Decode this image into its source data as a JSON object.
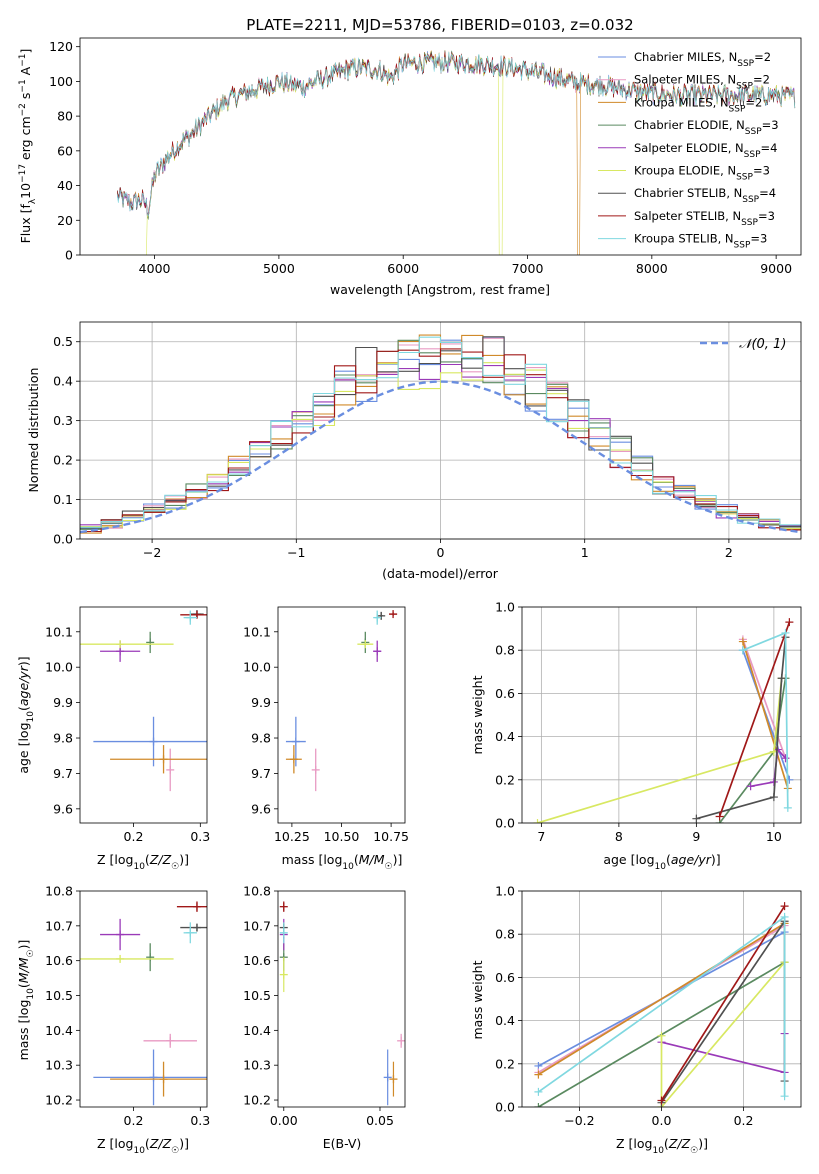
{
  "page_title": "PLATE=2211, MJD=53786, FIBERID=0103, z=0.032",
  "colors": [
    "#6a8ee0",
    "#e89ac3",
    "#d08a2a",
    "#5a8a60",
    "#9a3ab8",
    "#d8e862",
    "#505050",
    "#a01818",
    "#80d8e0"
  ],
  "chart_data": [
    {
      "type": "line",
      "id": "spectrum",
      "title": "PLATE=2211, MJD=53786, FIBERID=0103, z=0.032",
      "xlabel": "wavelength [Angstrom, rest frame]",
      "ylabel": "Flux [f_λ 10^-17 erg cm^-2 s^-1 A^-1]",
      "xlim": [
        3400,
        9200
      ],
      "ylim": [
        0,
        125
      ],
      "xticks": [
        4000,
        5000,
        6000,
        7000,
        8000,
        9000
      ],
      "yticks": [
        0,
        20,
        40,
        60,
        80,
        100,
        120
      ],
      "legend_placement": "upper-right",
      "series": [
        {
          "name": "Chabrier MILES, N_SSP=2",
          "color": "#6a8ee0"
        },
        {
          "name": "Salpeter MILES, N_SSP=2",
          "color": "#e89ac3"
        },
        {
          "name": "Kroupa MILES, N_SSP=2",
          "color": "#d08a2a"
        },
        {
          "name": "Chabrier ELODIE, N_SSP=3",
          "color": "#5a8a60"
        },
        {
          "name": "Salpeter ELODIE, N_SSP=4",
          "color": "#9a3ab8"
        },
        {
          "name": "Kroupa ELODIE, N_SSP=3",
          "color": "#d8e862"
        },
        {
          "name": "Chabrier STELIB, N_SSP=4",
          "color": "#505050"
        },
        {
          "name": "Salpeter STELIB, N_SSP=3",
          "color": "#a01818"
        },
        {
          "name": "Kroupa STELIB, N_SSP=3",
          "color": "#80d8e0"
        }
      ],
      "continuum": {
        "x": [
          3700,
          3800,
          3900,
          3950,
          4000,
          4100,
          4200,
          4300,
          4400,
          4500,
          4600,
          4800,
          5000,
          5100,
          5200,
          5400,
          5600,
          5800,
          5900,
          6000,
          6200,
          6400,
          6600,
          6800,
          7000,
          7200,
          7400,
          7600,
          7800,
          8000,
          8200,
          8400,
          8600,
          8800,
          9000,
          9150
        ],
        "y": [
          34,
          30,
          32,
          26,
          46,
          56,
          64,
          70,
          77,
          84,
          90,
          95,
          100,
          98,
          97,
          103,
          108,
          107,
          102,
          110,
          111,
          111,
          110,
          109,
          106,
          103,
          99,
          98,
          95,
          93,
          92,
          92,
          92,
          92,
          92,
          91
        ]
      }
    },
    {
      "type": "line",
      "id": "residuals",
      "xlabel": "(data-model)/error",
      "ylabel": "Normed distribution",
      "xlim": [
        -2.5,
        2.5
      ],
      "ylim": [
        0,
        0.55
      ],
      "xticks": [
        -2,
        -1,
        0,
        1,
        2
      ],
      "yticks": [
        0.0,
        0.1,
        0.2,
        0.3,
        0.4,
        0.5
      ],
      "xtick_labels": [
        "−2",
        "−1",
        "0",
        "1",
        "2"
      ],
      "grid": true,
      "legend": "N(0,1)",
      "legend_placement": "upper-right"
    },
    {
      "type": "scatter",
      "id": "age-vs-Z",
      "xlabel": "Z [log10(Z/Z☉)]",
      "ylabel": "age [log10(age/yr)]",
      "xlim": [
        0.12,
        0.31
      ],
      "ylim": [
        9.56,
        10.17
      ],
      "xticks": [
        0.2,
        0.3
      ],
      "yticks": [
        9.6,
        9.7,
        9.8,
        9.9,
        10.0,
        10.1
      ],
      "points": [
        {
          "x": 0.23,
          "y": 9.79,
          "xerr": 0.09,
          "yerr": 0.07
        },
        {
          "x": 0.255,
          "y": 9.71,
          "xerr": 0.0,
          "yerr": 0.06
        },
        {
          "x": 0.245,
          "y": 9.74,
          "xerr": 0.08,
          "yerr": 0.04
        },
        {
          "x": 0.225,
          "y": 10.07,
          "xerr": 0.0,
          "yerr": 0.03
        },
        {
          "x": 0.18,
          "y": 10.045,
          "xerr": 0.03,
          "yerr": 0.03
        },
        {
          "x": 0.18,
          "y": 10.065,
          "xerr": 0.08,
          "yerr": 0.0
        },
        {
          "x": 0.295,
          "y": 10.15,
          "xerr": 0.01,
          "yerr": 0.01
        },
        {
          "x": 0.295,
          "y": 10.148,
          "xerr": 0.025,
          "yerr": 0.005
        },
        {
          "x": 0.285,
          "y": 10.14,
          "xerr": 0.01,
          "yerr": 0.02
        }
      ]
    },
    {
      "type": "scatter",
      "id": "age-vs-mass",
      "xlabel": "mass [log10(M/M☉)]",
      "ylabel": "",
      "xlim": [
        10.18,
        10.82
      ],
      "ylim": [
        9.56,
        10.17
      ],
      "xticks": [
        10.25,
        10.5,
        10.75
      ],
      "yticks": [
        9.6,
        9.7,
        9.8,
        9.9,
        10.0,
        10.1
      ],
      "points": [
        {
          "x": 10.27,
          "y": 9.79,
          "xerr": 0.05,
          "yerr": 0.07
        },
        {
          "x": 10.37,
          "y": 9.71,
          "xerr": 0.0,
          "yerr": 0.06
        },
        {
          "x": 10.26,
          "y": 9.74,
          "xerr": 0.04,
          "yerr": 0.04
        },
        {
          "x": 10.62,
          "y": 10.07,
          "xerr": 0.0,
          "yerr": 0.03
        },
        {
          "x": 10.68,
          "y": 10.045,
          "xerr": 0.02,
          "yerr": 0.03
        },
        {
          "x": 10.62,
          "y": 10.065,
          "xerr": 0.04,
          "yerr": 0.0
        },
        {
          "x": 10.7,
          "y": 10.145,
          "xerr": 0.01,
          "yerr": 0.01
        },
        {
          "x": 10.76,
          "y": 10.15,
          "xerr": 0.02,
          "yerr": 0.005
        },
        {
          "x": 10.68,
          "y": 10.14,
          "xerr": 0.01,
          "yerr": 0.02
        }
      ]
    },
    {
      "type": "line",
      "id": "weight-vs-age",
      "xlabel": "age [log10(age/yr)]",
      "ylabel": "mass weight",
      "xlim": [
        6.75,
        10.35
      ],
      "ylim": [
        0,
        1
      ],
      "xticks": [
        7,
        8,
        9,
        10
      ],
      "yticks": [
        0.0,
        0.2,
        0.4,
        0.6,
        0.8,
        1.0
      ],
      "grid": true,
      "series": [
        {
          "x": [
            9.6,
            10.2
          ],
          "y": [
            0.8,
            0.2
          ]
        },
        {
          "x": [
            9.6,
            10.15
          ],
          "y": [
            0.85,
            0.3
          ]
        },
        {
          "x": [
            9.6,
            10.18
          ],
          "y": [
            0.84,
            0.16
          ]
        },
        {
          "x": [
            9.3,
            10.0,
            10.15
          ],
          "y": [
            0.0,
            0.33,
            0.67
          ]
        },
        {
          "x": [
            9.7,
            10.0,
            10.05,
            10.15
          ],
          "y": [
            0.17,
            0.19,
            0.34,
            0.3
          ]
        },
        {
          "x": [
            6.95,
            10.0,
            10.1
          ],
          "y": [
            0.0,
            0.33,
            0.67
          ]
        },
        {
          "x": [
            9.0,
            10.0,
            10.1,
            10.15
          ],
          "y": [
            0.02,
            0.12,
            0.67,
            0.86
          ]
        },
        {
          "x": [
            9.3,
            10.2
          ],
          "y": [
            0.03,
            0.93
          ]
        },
        {
          "x": [
            9.6,
            10.15,
            10.18
          ],
          "y": [
            0.8,
            0.88,
            0.07
          ]
        }
      ]
    },
    {
      "type": "scatter",
      "id": "mass-vs-Z",
      "xlabel": "Z [log10(Z/Z☉)]",
      "ylabel": "mass [log10(M/M☉)]",
      "xlim": [
        0.12,
        0.31
      ],
      "ylim": [
        10.18,
        10.8
      ],
      "xticks": [
        0.2,
        0.3
      ],
      "yticks": [
        10.2,
        10.3,
        10.4,
        10.5,
        10.6,
        10.7,
        10.8
      ],
      "points": [
        {
          "x": 0.23,
          "y": 10.265,
          "xerr": 0.09,
          "yerr": 0.08
        },
        {
          "x": 0.255,
          "y": 10.37,
          "xerr": 0.04,
          "yerr": 0.02
        },
        {
          "x": 0.245,
          "y": 10.26,
          "xerr": 0.08,
          "yerr": 0.05
        },
        {
          "x": 0.225,
          "y": 10.61,
          "xerr": 0.0,
          "yerr": 0.04
        },
        {
          "x": 0.18,
          "y": 10.675,
          "xerr": 0.03,
          "yerr": 0.045
        },
        {
          "x": 0.18,
          "y": 10.605,
          "xerr": 0.08,
          "yerr": 0.0
        },
        {
          "x": 0.295,
          "y": 10.695,
          "xerr": 0.025,
          "yerr": 0.01
        },
        {
          "x": 0.295,
          "y": 10.755,
          "xerr": 0.03,
          "yerr": 0.015
        },
        {
          "x": 0.285,
          "y": 10.68,
          "xerr": 0.01,
          "yerr": 0.03
        }
      ]
    },
    {
      "type": "scatter",
      "id": "mass-vs-ebv",
      "xlabel": "E(B-V)",
      "ylabel": "",
      "xlim": [
        -0.003,
        0.063
      ],
      "ylim": [
        10.18,
        10.8
      ],
      "xticks": [
        0.0,
        0.05
      ],
      "yticks": [
        10.2,
        10.3,
        10.4,
        10.5,
        10.6,
        10.7,
        10.8
      ],
      "points": [
        {
          "x": 0.054,
          "y": 10.265,
          "xerr": 0.0,
          "yerr": 0.08
        },
        {
          "x": 0.061,
          "y": 10.37,
          "xerr": 0.0,
          "yerr": 0.02
        },
        {
          "x": 0.057,
          "y": 10.26,
          "xerr": 0.0,
          "yerr": 0.05
        },
        {
          "x": 0.0,
          "y": 10.61,
          "xerr": 0.0,
          "yerr": 0.04
        },
        {
          "x": 0.0,
          "y": 10.675,
          "xerr": 0.0,
          "yerr": 0.045
        },
        {
          "x": 0.0,
          "y": 10.56,
          "xerr": 0.0,
          "yerr": 0.05
        },
        {
          "x": 0.0,
          "y": 10.695,
          "xerr": 0.0,
          "yerr": 0.01
        },
        {
          "x": 0.0,
          "y": 10.755,
          "xerr": 0.0,
          "yerr": 0.015
        },
        {
          "x": 0.0,
          "y": 10.68,
          "xerr": 0.0,
          "yerr": 0.03
        }
      ]
    },
    {
      "type": "line",
      "id": "weight-vs-Z",
      "xlabel": "Z [log10(Z/Z☉)]",
      "ylabel": "mass weight",
      "xlim": [
        -0.34,
        0.34
      ],
      "ylim": [
        0,
        1
      ],
      "xticks": [
        -0.2,
        0.0,
        0.2
      ],
      "xtick_labels": [
        "−0.2",
        "0.0",
        "0.2"
      ],
      "yticks": [
        0.0,
        0.2,
        0.4,
        0.6,
        0.8,
        1.0
      ],
      "grid": true,
      "series": [
        {
          "x": [
            -0.3,
            0.3
          ],
          "y": [
            0.19,
            0.81
          ]
        },
        {
          "x": [
            -0.3,
            0.3
          ],
          "y": [
            0.16,
            0.84
          ]
        },
        {
          "x": [
            -0.3,
            0.3
          ],
          "y": [
            0.15,
            0.85
          ]
        },
        {
          "x": [
            -0.3,
            0.3
          ],
          "y": [
            0.0,
            0.67
          ]
        },
        {
          "x": [
            0.0,
            0.3,
            0.3
          ],
          "y": [
            0.3,
            0.16,
            0.34
          ]
        },
        {
          "x": [
            0.0,
            0.0,
            0.3
          ],
          "y": [
            0.33,
            0.0,
            0.67
          ]
        },
        {
          "x": [
            0.0,
            0.3,
            0.3
          ],
          "y": [
            0.02,
            0.86,
            0.12
          ]
        },
        {
          "x": [
            0.0,
            0.3
          ],
          "y": [
            0.03,
            0.93
          ]
        },
        {
          "x": [
            -0.3,
            0.3,
            0.3
          ],
          "y": [
            0.07,
            0.88,
            0.05
          ]
        }
      ]
    }
  ]
}
